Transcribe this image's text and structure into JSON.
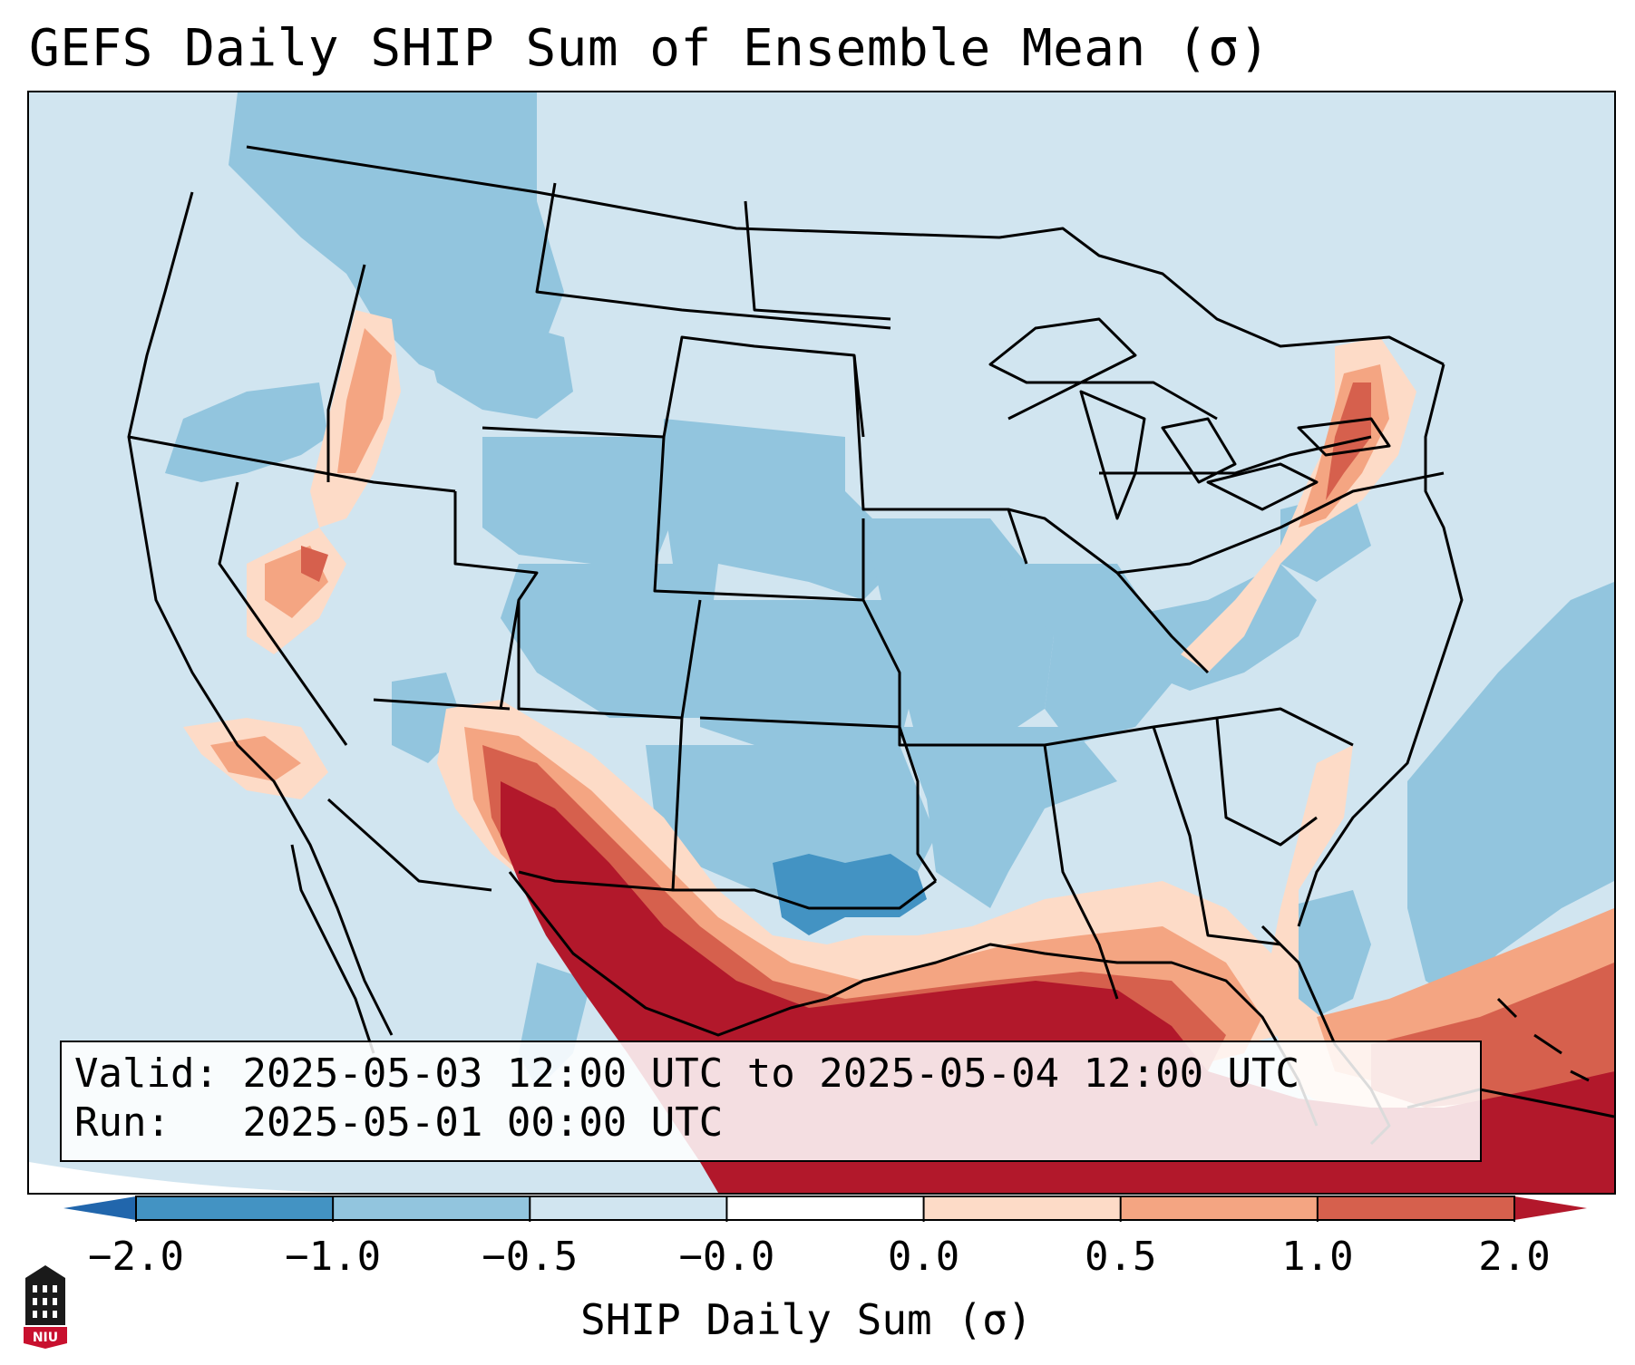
{
  "title": "GEFS Daily SHIP Sum of Ensemble Mean (σ)",
  "info": {
    "valid_label": "Valid:",
    "valid_value": "2025-05-03 12:00 UTC to 2025-05-04 12:00 UTC",
    "run_label": "Run:",
    "run_value": "2025-05-01 00:00 UTC"
  },
  "colorbar": {
    "label": "SHIP Daily Sum (σ)",
    "ticks": [
      "−2.0",
      "−1.0",
      "−0.5",
      "−0.0",
      "0.0",
      "0.5",
      "1.0",
      "2.0"
    ],
    "bin_colors": [
      "#4393c3",
      "#92c5de",
      "#d1e5f0",
      "#ffffff",
      "#fddbc7",
      "#f4a582",
      "#d6604d"
    ],
    "under_color": "#2166ac",
    "over_color": "#b2182b"
  },
  "logo": {
    "text": "NIU"
  },
  "map": {
    "ocean_color": "#d1e5f0",
    "outside_domain_color": "#ffffff",
    "border_color": "#000000"
  }
}
